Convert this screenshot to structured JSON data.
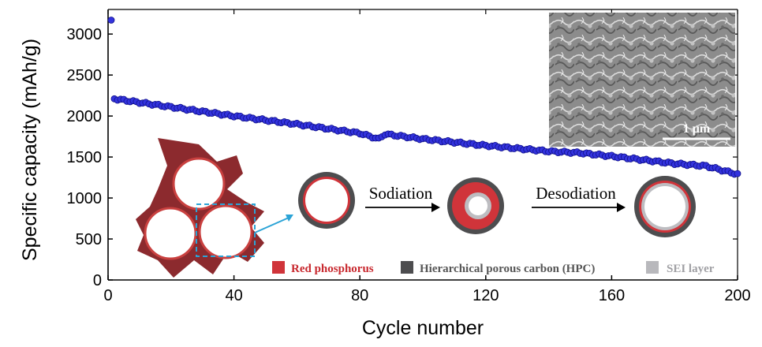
{
  "chart_data": {
    "type": "scatter",
    "xlabel": "Cycle number",
    "ylabel": "Specific capacity (mAh/g)",
    "xlim": [
      0,
      200
    ],
    "ylim": [
      0,
      3300
    ],
    "xticks": [
      0,
      40,
      80,
      120,
      160,
      200
    ],
    "yticks": [
      0,
      500,
      1000,
      1500,
      2000,
      2500,
      3000
    ],
    "grid": false,
    "marker_color": "#3333dd",
    "series": [
      {
        "name": "Specific capacity",
        "anchor_x": [
          1,
          2,
          20,
          40,
          60,
          80,
          86,
          88,
          100,
          120,
          140,
          150,
          160,
          180,
          190,
          200
        ],
        "anchor_y": [
          3170,
          2210,
          2110,
          2000,
          1900,
          1790,
          1720,
          1780,
          1720,
          1640,
          1570,
          1550,
          1510,
          1420,
          1390,
          1290
        ]
      }
    ]
  },
  "inset": {
    "scale_bar_label": "1 μm"
  },
  "schematic": {
    "step1_label": "Sodiation",
    "step2_label": "Desodiation",
    "legend": [
      {
        "label": "Red phosphorus",
        "color": "#d0343a",
        "text_color": "#c8282e"
      },
      {
        "label": "Hierarchical porous carbon (HPC)",
        "color": "#4d4d4f",
        "text_color": "#555555"
      },
      {
        "label": "SEI layer",
        "color": "#b8b8bc",
        "text_color": "#a0a0a4"
      }
    ],
    "colors": {
      "red": "#d0343a",
      "carbon": "#4d4d4f",
      "sei": "#bdbdc1",
      "pointer": "#2ba3d6"
    }
  }
}
